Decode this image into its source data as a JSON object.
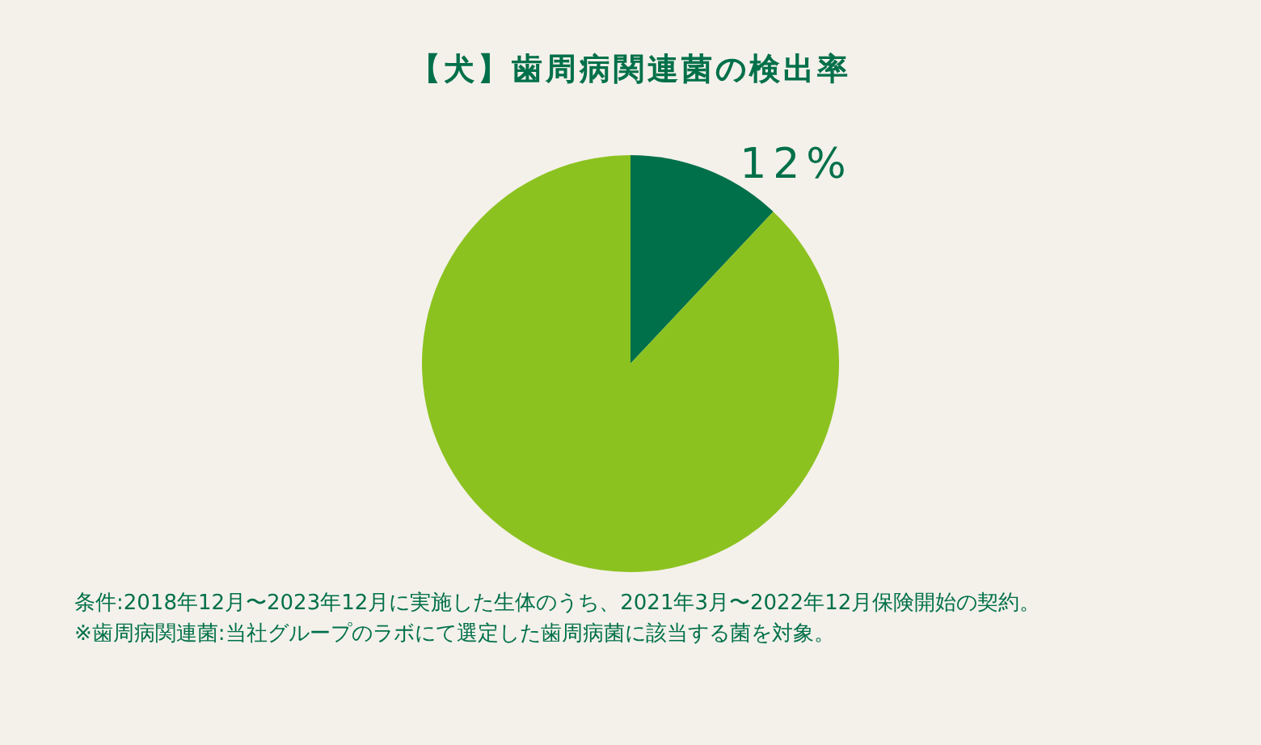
{
  "chart_data": {
    "type": "pie",
    "title": "【犬】歯周病関連菌の検出率",
    "categories": [
      null,
      null
    ],
    "values": [
      12,
      88
    ],
    "colors": [
      "#00704a",
      "#8cc220"
    ],
    "value_labels": [
      "12%",
      null
    ],
    "annotations": [
      "条件:2018年12月〜2023年12月に実施した生体のうち、2021年3月〜2022年12月保険開始の契約。",
      "※歯周病関連菌:当社グループのラボにて選定した歯周病菌に該当する菌を対象。"
    ]
  }
}
